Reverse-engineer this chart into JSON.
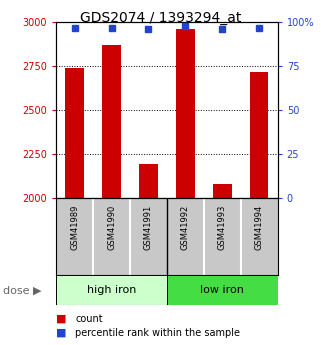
{
  "title": "GDS2074 / 1393294_at",
  "samples": [
    "GSM41989",
    "GSM41990",
    "GSM41991",
    "GSM41992",
    "GSM41993",
    "GSM41994"
  ],
  "bar_values": [
    2740,
    2870,
    2195,
    2960,
    2080,
    2720
  ],
  "percentile_values": [
    97,
    97,
    96,
    98,
    96,
    97
  ],
  "bar_color": "#cc0000",
  "dot_color": "#2244cc",
  "ylim_left": [
    2000,
    3000
  ],
  "ylim_right": [
    0,
    100
  ],
  "yticks_left": [
    2000,
    2250,
    2500,
    2750,
    3000
  ],
  "ytick_labels_left": [
    "2000",
    "2250",
    "2500",
    "2750",
    "3000"
  ],
  "yticks_right": [
    0,
    25,
    50,
    75,
    100
  ],
  "ytick_labels_right": [
    "0",
    "25",
    "50",
    "75",
    "100%"
  ],
  "group_high_label": "high iron",
  "group_low_label": "low iron",
  "group_high_color": "#ccffcc",
  "group_low_color": "#44dd44",
  "sample_label_bg": "#c8c8c8",
  "dose_label": "dose",
  "legend_count_label": "count",
  "legend_percentile_label": "percentile rank within the sample",
  "left_tick_color": "#cc0000",
  "right_tick_color": "#2244cc",
  "bar_bottom": 2000,
  "bar_width": 0.5,
  "dot_size": 5
}
